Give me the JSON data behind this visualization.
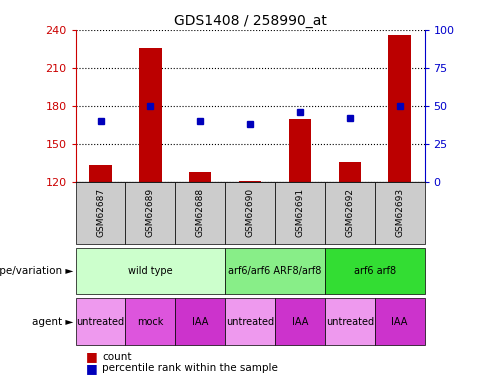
{
  "title": "GDS1408 / 258990_at",
  "samples": [
    "GSM62687",
    "GSM62689",
    "GSM62688",
    "GSM62690",
    "GSM62691",
    "GSM62692",
    "GSM62693"
  ],
  "count_values": [
    133,
    226,
    128,
    121,
    170,
    136,
    236
  ],
  "percentile_values": [
    40,
    50,
    40,
    38,
    46,
    42,
    50
  ],
  "ylim_left": [
    120,
    240
  ],
  "ylim_right": [
    0,
    100
  ],
  "yticks_left": [
    120,
    150,
    180,
    210,
    240
  ],
  "yticks_right": [
    0,
    25,
    50,
    75,
    100
  ],
  "bar_color": "#bb0000",
  "dot_color": "#0000bb",
  "bar_width": 0.45,
  "genotype_row": [
    {
      "label": "wild type",
      "span": [
        0,
        3
      ],
      "color": "#ccffcc"
    },
    {
      "label": "arf6/arf6 ARF8/arf8",
      "span": [
        3,
        5
      ],
      "color": "#88ee88"
    },
    {
      "label": "arf6 arf8",
      "span": [
        5,
        7
      ],
      "color": "#33dd33"
    }
  ],
  "agent_row": [
    {
      "label": "untreated",
      "span": [
        0,
        1
      ],
      "color": "#ee99ee"
    },
    {
      "label": "mock",
      "span": [
        1,
        2
      ],
      "color": "#dd55dd"
    },
    {
      "label": "IAA",
      "span": [
        2,
        3
      ],
      "color": "#cc33cc"
    },
    {
      "label": "untreated",
      "span": [
        3,
        4
      ],
      "color": "#ee99ee"
    },
    {
      "label": "IAA",
      "span": [
        4,
        5
      ],
      "color": "#cc33cc"
    },
    {
      "label": "untreated",
      "span": [
        5,
        6
      ],
      "color": "#ee99ee"
    },
    {
      "label": "IAA",
      "span": [
        6,
        7
      ],
      "color": "#cc33cc"
    }
  ],
  "sample_box_color": "#cccccc",
  "left_axis_color": "#cc0000",
  "right_axis_color": "#0000cc",
  "legend_count_label": "count",
  "legend_pct_label": "percentile rank within the sample",
  "genotype_label": "genotype/variation",
  "agent_label": "agent"
}
